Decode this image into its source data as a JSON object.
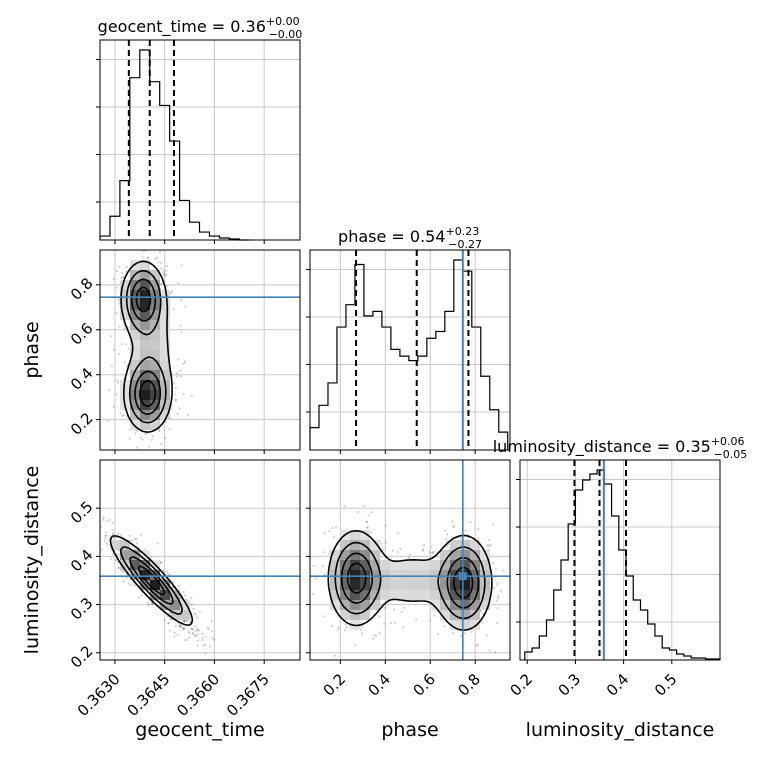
{
  "chart_data": {
    "type": "corner",
    "parameters": [
      "geocent_time",
      "phase",
      "luminosity_distance"
    ],
    "titles": [
      {
        "name": "geocent_time",
        "median": "0.36",
        "plus": "+0.00",
        "minus": "−0.00"
      },
      {
        "name": "phase",
        "median": "0.54",
        "plus": "+0.23",
        "minus": "−0.27"
      },
      {
        "name": "luminosity_distance",
        "median": "0.35",
        "plus": "+0.06",
        "minus": "−0.05"
      }
    ],
    "ranges": {
      "geocent_time": [
        0.36255,
        0.36858
      ],
      "phase": [
        0.065,
        0.955
      ],
      "luminosity_distance": [
        0.185,
        0.6
      ]
    },
    "ticks": {
      "geocent_time": [
        "0.3630",
        "0.3645",
        "0.3660",
        "0.3675"
      ],
      "phase": [
        "0.2",
        "0.4",
        "0.6",
        "0.8"
      ],
      "luminosity_distance": [
        "0.2",
        "0.3",
        "0.4",
        "0.5"
      ],
      "luminosity_distance_yaxis": [
        "0.2",
        "0.3",
        "0.4",
        "0.5"
      ]
    },
    "quantiles": {
      "geocent_time": [
        0.36342,
        0.36405,
        0.36478
      ],
      "phase": [
        0.27,
        0.54,
        0.77
      ],
      "luminosity_distance": [
        0.298,
        0.35,
        0.405
      ]
    },
    "truths": {
      "phase": 0.745,
      "luminosity_distance": 0.359
    },
    "histograms": {
      "geocent_time": {
        "bins": [
          0.36255,
          0.36285,
          0.36315,
          0.36345,
          0.36375,
          0.36405,
          0.36435,
          0.36465,
          0.36495,
          0.36525,
          0.36555,
          0.36585,
          0.36615,
          0.36645,
          0.36675,
          0.36705
        ],
        "counts": [
          0.02,
          0.12,
          0.3,
          0.82,
          0.96,
          0.8,
          0.68,
          0.5,
          0.2,
          0.09,
          0.04,
          0.02,
          0.01,
          0.005,
          0
        ]
      },
      "phase": {
        "bins": [
          0.065,
          0.105,
          0.145,
          0.185,
          0.225,
          0.265,
          0.305,
          0.345,
          0.385,
          0.425,
          0.465,
          0.505,
          0.545,
          0.585,
          0.625,
          0.665,
          0.705,
          0.745,
          0.785,
          0.825,
          0.865,
          0.905,
          0.945
        ],
        "counts": [
          0.1,
          0.2,
          0.3,
          0.55,
          0.65,
          0.83,
          0.6,
          0.62,
          0.55,
          0.45,
          0.42,
          0.4,
          0.42,
          0.5,
          0.53,
          0.62,
          0.85,
          0.8,
          0.55,
          0.33,
          0.18,
          0.08
        ]
      },
      "luminosity_distance": {
        "bins": [
          0.195,
          0.21,
          0.225,
          0.24,
          0.255,
          0.27,
          0.285,
          0.3,
          0.315,
          0.33,
          0.345,
          0.36,
          0.375,
          0.39,
          0.405,
          0.42,
          0.435,
          0.45,
          0.465,
          0.48,
          0.495,
          0.51,
          0.525,
          0.54,
          0.555,
          0.57,
          0.585,
          0.6
        ],
        "counts": [
          0.04,
          0.06,
          0.12,
          0.2,
          0.35,
          0.5,
          0.68,
          0.85,
          0.9,
          0.93,
          0.95,
          0.88,
          0.72,
          0.55,
          0.42,
          0.3,
          0.25,
          0.18,
          0.12,
          0.06,
          0.05,
          0.03,
          0.02,
          0.01,
          0.01,
          0.005,
          0.005
        ]
      }
    },
    "clusters": {
      "phase_vs_geocent_time": [
        {
          "x": 0.36385,
          "y": 0.74,
          "sx": 0.00032,
          "sy": 0.08,
          "w": 0.45
        },
        {
          "x": 0.36398,
          "y": 0.31,
          "sx": 0.00034,
          "sy": 0.08,
          "w": 0.45
        },
        {
          "x": 0.3641,
          "y": 0.52,
          "sx": 0.00045,
          "sy": 0.15,
          "w": 0.1
        }
      ],
      "luminosity_distance_vs_geocent_time": [
        {
          "x": 0.3641,
          "y": 0.35,
          "sx": 0.0006,
          "sy": 0.045,
          "w": 1.0,
          "rho": -0.9
        }
      ],
      "luminosity_distance_vs_phase": [
        {
          "x": 0.27,
          "y": 0.355,
          "sx": 0.06,
          "sy": 0.048,
          "w": 0.45
        },
        {
          "x": 0.75,
          "y": 0.345,
          "sx": 0.06,
          "sy": 0.048,
          "w": 0.45
        },
        {
          "x": 0.52,
          "y": 0.35,
          "sx": 0.13,
          "sy": 0.04,
          "w": 0.1
        }
      ]
    },
    "colors": {
      "truth": "#4682b4",
      "hist": "#000000",
      "quantile": "#000000",
      "grid": "#c8c8c8",
      "points": "#000000"
    }
  }
}
